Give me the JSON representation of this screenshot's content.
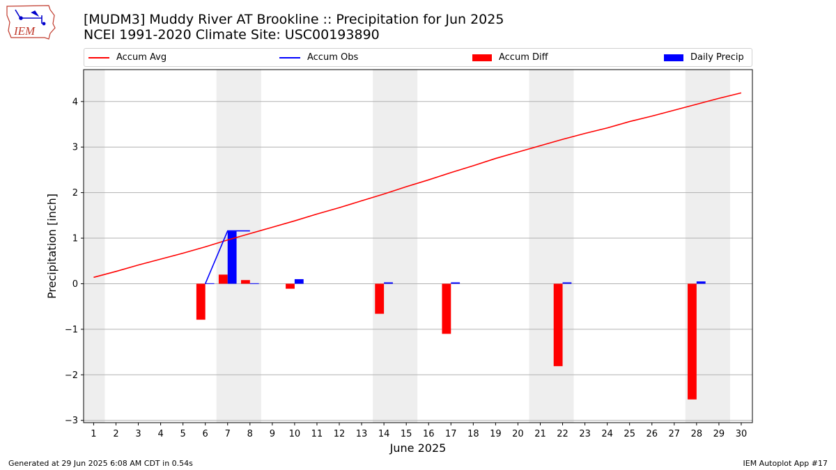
{
  "header": {
    "logo_text": "IEM",
    "title_line1": "[MUDM3] Muddy River  AT Brookline :: Precipitation for Jun 2025",
    "title_line2": "NCEI 1991-2020 Climate Site: USC00193890"
  },
  "legend": [
    {
      "label": "Accum Avg",
      "kind": "line",
      "color": "#ff0000"
    },
    {
      "label": "Accum Obs",
      "kind": "line",
      "color": "#0000ff"
    },
    {
      "label": "Accum Diff",
      "kind": "box",
      "color": "#ff0000"
    },
    {
      "label": "Daily Precip",
      "kind": "box",
      "color": "#0000ff"
    }
  ],
  "footer": {
    "left": "Generated at 29 Jun 2025 6:08 AM CDT in 0.54s",
    "right": "IEM Autoplot App #17"
  },
  "chart_data": {
    "type": "bar",
    "title": "[MUDM3] Muddy River  AT Brookline :: Precipitation for Jun 2025",
    "xlabel": "June 2025",
    "ylabel": "Precipitation [inch]",
    "ylim": [
      -3.05,
      4.7
    ],
    "xlim": [
      0.55,
      30.5
    ],
    "grid": "horizontal",
    "legend_position": "top",
    "x": [
      1,
      2,
      3,
      4,
      5,
      6,
      7,
      8,
      9,
      10,
      11,
      12,
      13,
      14,
      15,
      16,
      17,
      18,
      19,
      20,
      21,
      22,
      23,
      24,
      25,
      26,
      27,
      28,
      29,
      30
    ],
    "yticks": [
      -3,
      -2,
      -1,
      0,
      1,
      2,
      3,
      4
    ],
    "ytick_labels": [
      "−3",
      "−2",
      "−1",
      "0",
      "1",
      "2",
      "3",
      "4"
    ],
    "weekend_days": [
      1,
      7,
      8,
      14,
      15,
      21,
      22,
      28,
      29
    ],
    "series": [
      {
        "name": "Accum Avg",
        "kind": "line",
        "color": "#ff0000",
        "x": [
          1,
          2,
          3,
          4,
          5,
          6,
          7,
          8,
          9,
          10,
          11,
          12,
          13,
          14,
          15,
          16,
          17,
          18,
          19,
          20,
          21,
          22,
          23,
          24,
          25,
          26,
          27,
          28,
          29,
          30
        ],
        "values": [
          0.14,
          0.27,
          0.41,
          0.54,
          0.67,
          0.81,
          0.96,
          1.1,
          1.24,
          1.38,
          1.53,
          1.67,
          1.82,
          1.97,
          2.13,
          2.28,
          2.44,
          2.59,
          2.75,
          2.89,
          3.03,
          3.17,
          3.3,
          3.42,
          3.56,
          3.68,
          3.81,
          3.94,
          4.07,
          4.19
        ]
      },
      {
        "name": "Accum Obs",
        "kind": "line",
        "color": "#0000ff",
        "x": [
          6,
          7,
          8
        ],
        "values": [
          0.0,
          1.16,
          1.16
        ]
      },
      {
        "name": "Accum Diff",
        "kind": "bar",
        "color": "#ff0000",
        "x": [
          6,
          7,
          8,
          10,
          14,
          17,
          22,
          28
        ],
        "values": [
          -0.79,
          0.2,
          0.08,
          -0.11,
          -0.66,
          -1.1,
          -1.81,
          -2.54
        ]
      },
      {
        "name": "Daily Precip",
        "kind": "bar",
        "color": "#0000ff",
        "x": [
          6,
          7,
          8,
          10,
          14,
          17,
          22,
          28
        ],
        "values": [
          0.01,
          1.15,
          0.01,
          0.1,
          0.03,
          0.03,
          0.03,
          0.05
        ]
      }
    ]
  }
}
